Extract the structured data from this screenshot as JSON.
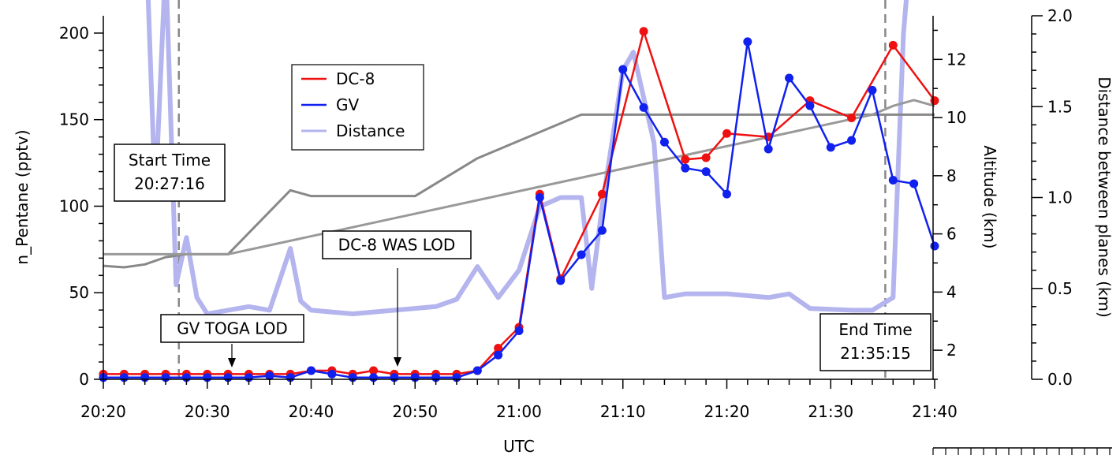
{
  "chart_data": {
    "type": "line",
    "title": "",
    "xlabel": "UTC",
    "x_ticks": [
      "20:20",
      "20:30",
      "20:40",
      "20:50",
      "21:00",
      "21:10",
      "21:20",
      "21:30",
      "21:40"
    ],
    "xlim_minutes_of_day": [
      1220,
      1300
    ],
    "axes": {
      "left": {
        "label": "n_Pentane (pptv)",
        "ylim": [
          0,
          210
        ],
        "ticks": [
          "0",
          "50",
          "100",
          "150",
          "200"
        ]
      },
      "right_altitude": {
        "label": "Altitude (km)",
        "ylim": [
          1,
          13.5
        ],
        "ticks": [
          "2",
          "4",
          "6",
          "8",
          "10",
          "12"
        ]
      },
      "right_distance": {
        "label": "Distance between planes (km)",
        "ylim": [
          0,
          2.0
        ],
        "ticks": [
          "0.0",
          "0.5",
          "1.0",
          "1.5",
          "2.0"
        ]
      }
    },
    "series": [
      {
        "name": "DC-8",
        "axis": "left",
        "color": "#ee1111",
        "markers": true,
        "points": [
          [
            "20:20",
            3
          ],
          [
            "20:22",
            3
          ],
          [
            "20:24",
            3
          ],
          [
            "20:26",
            3
          ],
          [
            "20:28",
            3
          ],
          [
            "20:30",
            3
          ],
          [
            "20:32",
            3
          ],
          [
            "20:34",
            3
          ],
          [
            "20:36",
            3
          ],
          [
            "20:38",
            3
          ],
          [
            "20:40",
            5
          ],
          [
            "20:42",
            5
          ],
          [
            "20:44",
            3
          ],
          [
            "20:46",
            5
          ],
          [
            "20:48",
            3
          ],
          [
            "20:50",
            3
          ],
          [
            "20:52",
            3
          ],
          [
            "20:54",
            3
          ],
          [
            "20:56",
            5
          ],
          [
            "20:58",
            18
          ],
          [
            "21:00",
            30
          ],
          [
            "21:02",
            107
          ],
          [
            "21:04",
            58
          ],
          [
            "21:08",
            107
          ],
          [
            "21:12",
            201
          ],
          [
            "21:16",
            127
          ],
          [
            "21:18",
            128
          ],
          [
            "21:20",
            142
          ],
          [
            "21:24",
            140
          ],
          [
            "21:28",
            161
          ],
          [
            "21:32",
            151
          ],
          [
            "21:36",
            193
          ],
          [
            "21:40",
            161
          ]
        ]
      },
      {
        "name": "GV",
        "axis": "left",
        "color": "#1020ee",
        "markers": true,
        "points": [
          [
            "20:20",
            1
          ],
          [
            "20:22",
            1
          ],
          [
            "20:24",
            1
          ],
          [
            "20:26",
            1
          ],
          [
            "20:28",
            1
          ],
          [
            "20:30",
            1
          ],
          [
            "20:32",
            1
          ],
          [
            "20:34",
            1
          ],
          [
            "20:36",
            2
          ],
          [
            "20:38",
            1
          ],
          [
            "20:40",
            5
          ],
          [
            "20:42",
            3
          ],
          [
            "20:44",
            1
          ],
          [
            "20:46",
            1
          ],
          [
            "20:48",
            1
          ],
          [
            "20:50",
            1
          ],
          [
            "20:52",
            1
          ],
          [
            "20:54",
            1
          ],
          [
            "20:56",
            5
          ],
          [
            "20:58",
            14
          ],
          [
            "21:00",
            28
          ],
          [
            "21:02",
            105
          ],
          [
            "21:04",
            57
          ],
          [
            "21:06",
            72
          ],
          [
            "21:08",
            86
          ],
          [
            "21:10",
            179
          ],
          [
            "21:12",
            157
          ],
          [
            "21:14",
            137
          ],
          [
            "21:16",
            122
          ],
          [
            "21:18",
            120
          ],
          [
            "21:20",
            107
          ],
          [
            "21:22",
            195
          ],
          [
            "21:24",
            133
          ],
          [
            "21:26",
            174
          ],
          [
            "21:28",
            158
          ],
          [
            "21:30",
            134
          ],
          [
            "21:32",
            138
          ],
          [
            "21:34",
            167
          ],
          [
            "21:36",
            115
          ],
          [
            "21:38",
            113
          ],
          [
            "21:40",
            77
          ]
        ]
      },
      {
        "name": "Distance",
        "axis": "right_distance",
        "color": "#b4b4ee",
        "markers": false,
        "points": [
          [
            "20:24",
            2.6
          ],
          [
            "20:25",
            1.0
          ],
          [
            "20:26",
            2.3
          ],
          [
            "20:27",
            0.52
          ],
          [
            "20:28",
            0.78
          ],
          [
            "20:29",
            0.45
          ],
          [
            "20:30",
            0.36
          ],
          [
            "20:32",
            0.38
          ],
          [
            "20:34",
            0.4
          ],
          [
            "20:36",
            0.38
          ],
          [
            "20:38",
            0.72
          ],
          [
            "20:39",
            0.43
          ],
          [
            "20:40",
            0.38
          ],
          [
            "20:44",
            0.36
          ],
          [
            "20:48",
            0.38
          ],
          [
            "20:52",
            0.4
          ],
          [
            "20:54",
            0.44
          ],
          [
            "20:56",
            0.62
          ],
          [
            "20:58",
            0.45
          ],
          [
            "21:00",
            0.6
          ],
          [
            "21:02",
            0.95
          ],
          [
            "21:04",
            1.0
          ],
          [
            "21:06",
            1.0
          ],
          [
            "21:07",
            0.5
          ],
          [
            "21:08",
            0.95
          ],
          [
            "21:10",
            1.7
          ],
          [
            "21:11",
            1.8
          ],
          [
            "21:13",
            1.3
          ],
          [
            "21:14",
            0.45
          ],
          [
            "21:16",
            0.47
          ],
          [
            "21:20",
            0.47
          ],
          [
            "21:24",
            0.45
          ],
          [
            "21:26",
            0.47
          ],
          [
            "21:28",
            0.39
          ],
          [
            "21:32",
            0.38
          ],
          [
            "21:34",
            0.38
          ],
          [
            "21:36",
            0.45
          ],
          [
            "21:37",
            1.9
          ],
          [
            "21:38",
            2.6
          ]
        ]
      },
      {
        "name": "Altitude",
        "axis": "right_altitude",
        "color": "#888888",
        "markers": false,
        "points": [
          [
            "20:20",
            4.9
          ],
          [
            "20:22",
            4.85
          ],
          [
            "20:24",
            4.95
          ],
          [
            "20:26",
            5.2
          ],
          [
            "20:28",
            5.3
          ],
          [
            "20:30",
            5.3
          ],
          [
            "20:32",
            5.3
          ],
          [
            "20:38",
            7.5
          ],
          [
            "20:40",
            7.3
          ],
          [
            "20:50",
            7.3
          ],
          [
            "20:56",
            8.6
          ],
          [
            "21:06",
            10.1
          ],
          [
            "21:10",
            10.1
          ],
          [
            "21:34",
            10.1
          ],
          [
            "21:40",
            10.1
          ]
        ]
      },
      {
        "name": "Altitude 2",
        "axis": "right_altitude",
        "color": "#999999",
        "markers": false,
        "points": [
          [
            "20:20",
            5.3
          ],
          [
            "20:32",
            5.3
          ],
          [
            "21:34",
            10.1
          ],
          [
            "21:36",
            10.4
          ],
          [
            "21:38",
            10.6
          ],
          [
            "21:40",
            10.4
          ]
        ]
      }
    ],
    "vertical_lines": [
      {
        "time": "20:27:16",
        "style": "dashed"
      },
      {
        "time": "21:35:15",
        "style": "dashed"
      }
    ],
    "annotations": [
      {
        "line1": "Start Time",
        "line2": "20:27:16"
      },
      {
        "line1": "End Time",
        "line2": "21:35:15"
      },
      {
        "text": "DC-8 WAS LOD",
        "arrow_to": "20:48"
      },
      {
        "text": "GV TOGA LOD",
        "arrow_to": "20:33"
      }
    ],
    "legend": {
      "placement": "top-left",
      "entries": [
        "DC-8",
        "GV",
        "Distance"
      ]
    }
  }
}
